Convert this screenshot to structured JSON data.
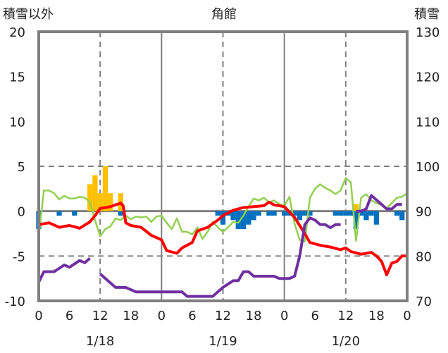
{
  "chart_data": {
    "type": "bar+line",
    "title": "角館",
    "ylabel_left": "積雪以外",
    "ylabel_right": "積雪",
    "ylim_left": [
      -10,
      20
    ],
    "ylim_right": [
      70,
      130
    ],
    "yticks_left": [
      "20",
      "15",
      "10",
      "5",
      "0",
      "-5",
      "-10"
    ],
    "yticks_right": [
      "130",
      "120",
      "110",
      "100",
      "90",
      "80",
      "70"
    ],
    "xlim_hours": [
      0,
      72
    ],
    "xticks": [
      "0",
      "6",
      "12",
      "18",
      "0",
      "6",
      "12",
      "18",
      "0",
      "6",
      "12",
      "18",
      "0"
    ],
    "date_labels": [
      {
        "label": "1/18",
        "hour": 12
      },
      {
        "label": "1/19",
        "hour": 36
      },
      {
        "label": "1/20",
        "hour": 60
      }
    ],
    "colors": {
      "temperature": "#ff0000",
      "wind": "#92d050",
      "snow_depth": "#7030a0",
      "snowfall": "#ffc000",
      "negative": "#0070c0",
      "axis": "#808080"
    },
    "snowfall_bars": [
      [
        10,
        3
      ],
      [
        11,
        4
      ],
      [
        12,
        2
      ],
      [
        13,
        5
      ],
      [
        14,
        2
      ],
      [
        16,
        2
      ],
      [
        62,
        0.8
      ]
    ],
    "negative_bars": [
      [
        0,
        -2
      ],
      [
        4,
        -0.5
      ],
      [
        7,
        -0.5
      ],
      [
        16,
        -0.5
      ],
      [
        35,
        -0.5
      ],
      [
        36,
        -1.5
      ],
      [
        37,
        -0.5
      ],
      [
        38,
        -1
      ],
      [
        39,
        -2
      ],
      [
        40,
        -2
      ],
      [
        41,
        -1.5
      ],
      [
        42,
        -1
      ],
      [
        43,
        -0.5
      ],
      [
        45,
        -0.5
      ],
      [
        46,
        -0.5
      ],
      [
        48,
        -0.5
      ],
      [
        49,
        -0.5
      ],
      [
        50,
        -0.5
      ],
      [
        51,
        -1
      ],
      [
        52,
        -0.5
      ],
      [
        53,
        -0.5
      ],
      [
        58,
        -0.5
      ],
      [
        59,
        -0.5
      ],
      [
        60,
        -0.5
      ],
      [
        61,
        -0.5
      ],
      [
        62,
        -2
      ],
      [
        63,
        -0.5
      ],
      [
        64,
        -1
      ],
      [
        65,
        -0.5
      ],
      [
        66,
        -1.5
      ],
      [
        70,
        -0.5
      ],
      [
        71,
        -1
      ]
    ],
    "temperature": [
      [
        0,
        -1.5
      ],
      [
        2,
        -1.3
      ],
      [
        4,
        -1.8
      ],
      [
        6,
        -1.6
      ],
      [
        8,
        -1.9
      ],
      [
        10,
        -1.2
      ],
      [
        11,
        -0.5
      ],
      [
        12,
        0.3
      ],
      [
        14,
        0.5
      ],
      [
        16,
        0.9
      ],
      [
        16.5,
        0.6
      ],
      [
        17,
        -1.3
      ],
      [
        18,
        -1.6
      ],
      [
        20,
        -1.8
      ],
      [
        22,
        -2.7
      ],
      [
        24,
        -3.2
      ],
      [
        25,
        -4.4
      ],
      [
        27,
        -4.7
      ],
      [
        28,
        -4.1
      ],
      [
        30,
        -3.5
      ],
      [
        31,
        -2.2
      ],
      [
        33,
        -1.8
      ],
      [
        35,
        -1
      ],
      [
        36,
        -0.5
      ],
      [
        38,
        0.1
      ],
      [
        40,
        0.4
      ],
      [
        42,
        0.5
      ],
      [
        44,
        0.6
      ],
      [
        45,
        1.0
      ],
      [
        46,
        0.7
      ],
      [
        48,
        0.5
      ],
      [
        50,
        -0.7
      ],
      [
        52,
        -2.5
      ],
      [
        53,
        -3.5
      ],
      [
        55,
        -3.8
      ],
      [
        57,
        -4
      ],
      [
        59,
        -4.3
      ],
      [
        60,
        -4.1
      ],
      [
        61,
        -4.5
      ],
      [
        63,
        -4.8
      ],
      [
        65,
        -4.6
      ],
      [
        66,
        -5
      ],
      [
        67,
        -5.6
      ],
      [
        68,
        -7.1
      ],
      [
        69,
        -5.8
      ],
      [
        70,
        -5.6
      ],
      [
        71,
        -5
      ],
      [
        72,
        -5
      ]
    ],
    "wind": [
      [
        0,
        -2.8
      ],
      [
        1,
        2.3
      ],
      [
        2,
        2.3
      ],
      [
        3,
        2.0
      ],
      [
        4,
        1.3
      ],
      [
        5,
        1.7
      ],
      [
        6,
        1.4
      ],
      [
        7,
        1.4
      ],
      [
        8,
        1.6
      ],
      [
        9,
        1.5
      ],
      [
        10,
        1
      ],
      [
        11,
        -1
      ],
      [
        12,
        -2.8
      ],
      [
        13,
        -2
      ],
      [
        14,
        -1.7
      ],
      [
        15,
        -0.8
      ],
      [
        16,
        -1
      ],
      [
        17,
        -0.5
      ],
      [
        18,
        -0.9
      ],
      [
        19,
        -0.6
      ],
      [
        20,
        -0.7
      ],
      [
        21,
        -0.6
      ],
      [
        22,
        -1.2
      ],
      [
        23,
        -0.6
      ],
      [
        24,
        -0.5
      ],
      [
        25,
        -1.3
      ],
      [
        26,
        -2
      ],
      [
        27,
        -0.8
      ],
      [
        28,
        -2.3
      ],
      [
        29,
        -2.3
      ],
      [
        30,
        -2.6
      ],
      [
        31,
        -1.8
      ],
      [
        32,
        -3.1
      ],
      [
        33,
        -2.3
      ],
      [
        34,
        -1.2
      ],
      [
        35,
        -1.8
      ],
      [
        36,
        -2.3
      ],
      [
        37,
        -1.8
      ],
      [
        38,
        -1.2
      ],
      [
        39,
        -1.3
      ],
      [
        40,
        -0.5
      ],
      [
        41,
        0.5
      ],
      [
        42,
        1.4
      ],
      [
        43,
        1.2
      ],
      [
        44,
        1.5
      ],
      [
        45,
        1.0
      ],
      [
        46,
        1.2
      ],
      [
        47,
        0.8
      ],
      [
        48,
        0.6
      ],
      [
        49,
        1.6
      ],
      [
        50,
        -1.4
      ],
      [
        51,
        -3.2
      ],
      [
        52,
        -3.4
      ],
      [
        53,
        1.5
      ],
      [
        54,
        2.5
      ],
      [
        55,
        3.0
      ],
      [
        56,
        2.6
      ],
      [
        57,
        2.3
      ],
      [
        58,
        1.9
      ],
      [
        59,
        2.3
      ],
      [
        60,
        3.7
      ],
      [
        61,
        3.2
      ],
      [
        62,
        -3.3
      ],
      [
        63,
        1.5
      ],
      [
        64,
        1.9
      ],
      [
        65,
        1.2
      ],
      [
        66,
        0.9
      ],
      [
        67,
        0.7
      ],
      [
        68,
        0.3
      ],
      [
        69,
        0.9
      ],
      [
        70,
        1.5
      ],
      [
        71,
        1.6
      ],
      [
        72,
        2.0
      ]
    ],
    "snow_depth_segments": [
      [
        [
          0,
          74.2
        ],
        [
          1,
          76.5
        ],
        [
          3,
          76.5
        ],
        [
          5,
          78
        ],
        [
          6,
          77.5
        ],
        [
          8,
          79
        ],
        [
          9,
          78.5
        ],
        [
          10,
          79.5
        ]
      ],
      [
        [
          12,
          76
        ],
        [
          15,
          73
        ],
        [
          17,
          73
        ],
        [
          19,
          72
        ],
        [
          28,
          72
        ],
        [
          29,
          71
        ],
        [
          34,
          71
        ],
        [
          36,
          73
        ],
        [
          38,
          74.5
        ],
        [
          39,
          74.5
        ],
        [
          40,
          76.5
        ],
        [
          41,
          76.5
        ],
        [
          42,
          75.5
        ],
        [
          46,
          75.5
        ],
        [
          47,
          75
        ],
        [
          49,
          75
        ],
        [
          50,
          75.5
        ],
        [
          51,
          80
        ],
        [
          52,
          87
        ],
        [
          53,
          88.5
        ],
        [
          54,
          88
        ],
        [
          55,
          87
        ],
        [
          56,
          87
        ],
        [
          57,
          86.3
        ],
        [
          58,
          87
        ],
        [
          59,
          87
        ]
      ],
      [
        [
          62,
          90
        ],
        [
          63,
          90
        ],
        [
          64,
          90.5
        ],
        [
          65,
          93.5
        ],
        [
          66,
          92.5
        ],
        [
          67,
          91.5
        ],
        [
          68,
          90.5
        ],
        [
          69,
          90.5
        ],
        [
          70,
          91.5
        ],
        [
          71,
          91.5
        ]
      ]
    ]
  }
}
